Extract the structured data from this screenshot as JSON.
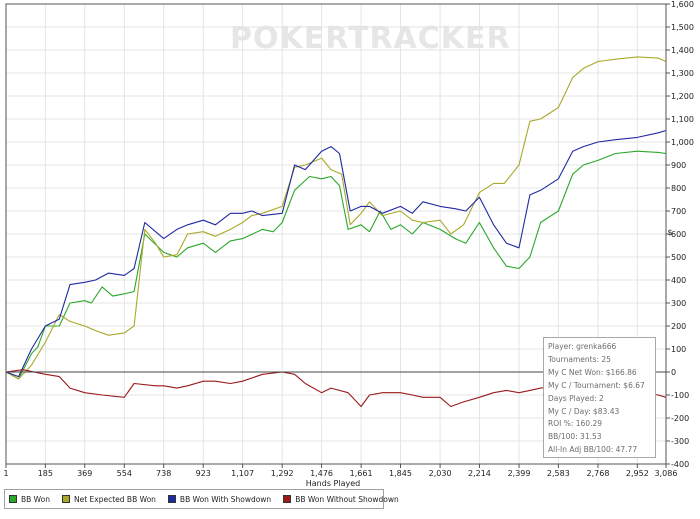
{
  "chart_data": {
    "type": "line",
    "title": "",
    "watermark": "POKERTRACKER",
    "xlabel": "Hands Played",
    "ylabel": "$",
    "xlim": [
      1,
      3086
    ],
    "ylim": [
      -400,
      1600
    ],
    "x_ticks": [
      "1",
      "185",
      "369",
      "554",
      "738",
      "923",
      "1,107",
      "1,292",
      "1,476",
      "1,661",
      "1,845",
      "2,030",
      "2,214",
      "2,399",
      "2,583",
      "2,768",
      "2,952",
      "3,086"
    ],
    "y_ticks": [
      "-400",
      "-300",
      "-200",
      "-100",
      "0",
      "100",
      "200",
      "300",
      "400",
      "500",
      "600",
      "700",
      "800",
      "900",
      "1,000",
      "1,100",
      "1,200",
      "1,300",
      "1,400",
      "1,500",
      "1,600"
    ],
    "grid": true,
    "legend_position": "bottom-left",
    "series": [
      {
        "name": "BB Won",
        "color": "#2aa82a",
        "points": [
          [
            1,
            0
          ],
          [
            60,
            -30
          ],
          [
            120,
            80
          ],
          [
            150,
            110
          ],
          [
            185,
            200
          ],
          [
            250,
            200
          ],
          [
            300,
            300
          ],
          [
            369,
            310
          ],
          [
            400,
            300
          ],
          [
            450,
            370
          ],
          [
            500,
            330
          ],
          [
            554,
            340
          ],
          [
            600,
            350
          ],
          [
            650,
            600
          ],
          [
            738,
            520
          ],
          [
            800,
            500
          ],
          [
            850,
            540
          ],
          [
            923,
            560
          ],
          [
            980,
            520
          ],
          [
            1050,
            570
          ],
          [
            1107,
            580
          ],
          [
            1200,
            620
          ],
          [
            1250,
            610
          ],
          [
            1292,
            650
          ],
          [
            1350,
            790
          ],
          [
            1420,
            850
          ],
          [
            1476,
            840
          ],
          [
            1520,
            850
          ],
          [
            1560,
            810
          ],
          [
            1600,
            620
          ],
          [
            1661,
            640
          ],
          [
            1700,
            610
          ],
          [
            1750,
            700
          ],
          [
            1800,
            620
          ],
          [
            1845,
            640
          ],
          [
            1900,
            600
          ],
          [
            1950,
            650
          ],
          [
            2030,
            620
          ],
          [
            2100,
            580
          ],
          [
            2150,
            560
          ],
          [
            2214,
            650
          ],
          [
            2280,
            540
          ],
          [
            2340,
            460
          ],
          [
            2399,
            450
          ],
          [
            2450,
            500
          ],
          [
            2500,
            650
          ],
          [
            2583,
            700
          ],
          [
            2650,
            860
          ],
          [
            2700,
            900
          ],
          [
            2768,
            920
          ],
          [
            2850,
            950
          ],
          [
            2952,
            960
          ],
          [
            3050,
            955
          ],
          [
            3086,
            950
          ]
        ]
      },
      {
        "name": "Net Expected BB Won",
        "color": "#a9a92a",
        "points": [
          [
            1,
            0
          ],
          [
            60,
            -30
          ],
          [
            120,
            30
          ],
          [
            185,
            130
          ],
          [
            250,
            250
          ],
          [
            300,
            220
          ],
          [
            369,
            200
          ],
          [
            420,
            180
          ],
          [
            480,
            160
          ],
          [
            554,
            170
          ],
          [
            600,
            200
          ],
          [
            650,
            620
          ],
          [
            700,
            560
          ],
          [
            738,
            500
          ],
          [
            800,
            510
          ],
          [
            850,
            600
          ],
          [
            923,
            610
          ],
          [
            980,
            590
          ],
          [
            1050,
            620
          ],
          [
            1107,
            650
          ],
          [
            1150,
            680
          ],
          [
            1200,
            690
          ],
          [
            1292,
            720
          ],
          [
            1350,
            890
          ],
          [
            1400,
            900
          ],
          [
            1476,
            930
          ],
          [
            1520,
            880
          ],
          [
            1570,
            860
          ],
          [
            1610,
            640
          ],
          [
            1661,
            690
          ],
          [
            1700,
            740
          ],
          [
            1760,
            680
          ],
          [
            1845,
            700
          ],
          [
            1900,
            660
          ],
          [
            1950,
            650
          ],
          [
            2030,
            660
          ],
          [
            2080,
            600
          ],
          [
            2140,
            640
          ],
          [
            2214,
            780
          ],
          [
            2280,
            820
          ],
          [
            2330,
            820
          ],
          [
            2399,
            900
          ],
          [
            2450,
            1090
          ],
          [
            2500,
            1100
          ],
          [
            2583,
            1150
          ],
          [
            2650,
            1280
          ],
          [
            2700,
            1320
          ],
          [
            2768,
            1350
          ],
          [
            2850,
            1360
          ],
          [
            2952,
            1370
          ],
          [
            3050,
            1365
          ],
          [
            3086,
            1350
          ]
        ]
      },
      {
        "name": "BB Won With Showdown",
        "color": "#1f2aa0",
        "points": [
          [
            1,
            0
          ],
          [
            60,
            -20
          ],
          [
            120,
            100
          ],
          [
            185,
            200
          ],
          [
            250,
            230
          ],
          [
            300,
            380
          ],
          [
            369,
            390
          ],
          [
            420,
            400
          ],
          [
            480,
            430
          ],
          [
            554,
            420
          ],
          [
            600,
            450
          ],
          [
            650,
            650
          ],
          [
            738,
            580
          ],
          [
            800,
            620
          ],
          [
            850,
            640
          ],
          [
            923,
            660
          ],
          [
            980,
            640
          ],
          [
            1050,
            690
          ],
          [
            1107,
            690
          ],
          [
            1150,
            700
          ],
          [
            1200,
            680
          ],
          [
            1292,
            690
          ],
          [
            1350,
            900
          ],
          [
            1400,
            880
          ],
          [
            1476,
            960
          ],
          [
            1520,
            980
          ],
          [
            1560,
            950
          ],
          [
            1610,
            700
          ],
          [
            1661,
            720
          ],
          [
            1700,
            720
          ],
          [
            1760,
            690
          ],
          [
            1845,
            720
          ],
          [
            1900,
            690
          ],
          [
            1950,
            740
          ],
          [
            2030,
            720
          ],
          [
            2100,
            710
          ],
          [
            2150,
            700
          ],
          [
            2214,
            760
          ],
          [
            2280,
            640
          ],
          [
            2340,
            560
          ],
          [
            2399,
            540
          ],
          [
            2450,
            770
          ],
          [
            2500,
            790
          ],
          [
            2583,
            840
          ],
          [
            2650,
            960
          ],
          [
            2700,
            980
          ],
          [
            2768,
            1000
          ],
          [
            2850,
            1010
          ],
          [
            2952,
            1020
          ],
          [
            3050,
            1040
          ],
          [
            3086,
            1050
          ]
        ]
      },
      {
        "name": "BB Won Without Showdown",
        "color": "#9a1a1a",
        "points": [
          [
            1,
            0
          ],
          [
            80,
            10
          ],
          [
            185,
            -10
          ],
          [
            250,
            -20
          ],
          [
            300,
            -70
          ],
          [
            369,
            -90
          ],
          [
            450,
            -100
          ],
          [
            554,
            -110
          ],
          [
            600,
            -50
          ],
          [
            700,
            -60
          ],
          [
            738,
            -60
          ],
          [
            800,
            -70
          ],
          [
            850,
            -60
          ],
          [
            923,
            -40
          ],
          [
            980,
            -40
          ],
          [
            1050,
            -50
          ],
          [
            1107,
            -40
          ],
          [
            1200,
            -10
          ],
          [
            1292,
            0
          ],
          [
            1350,
            -10
          ],
          [
            1400,
            -50
          ],
          [
            1476,
            -90
          ],
          [
            1520,
            -70
          ],
          [
            1600,
            -90
          ],
          [
            1661,
            -150
          ],
          [
            1700,
            -100
          ],
          [
            1760,
            -90
          ],
          [
            1845,
            -90
          ],
          [
            1900,
            -100
          ],
          [
            1950,
            -110
          ],
          [
            2030,
            -110
          ],
          [
            2080,
            -150
          ],
          [
            2140,
            -130
          ],
          [
            2214,
            -110
          ],
          [
            2280,
            -90
          ],
          [
            2340,
            -80
          ],
          [
            2399,
            -90
          ],
          [
            2450,
            -80
          ],
          [
            2500,
            -70
          ],
          [
            2583,
            -60
          ],
          [
            2650,
            -80
          ],
          [
            2768,
            -80
          ],
          [
            2850,
            -80
          ],
          [
            2952,
            -90
          ],
          [
            3050,
            -100
          ],
          [
            3086,
            -110
          ]
        ]
      }
    ]
  },
  "stats": [
    "Player: grenka666",
    "Tournaments: 25",
    "My C Net Won: $166.86",
    "My C / Tournament: $6.67",
    "Days Played: 2",
    "My C / Day: $83.43",
    "ROI %: 160.29",
    "BB/100: 31.53",
    "All-In Adj BB/100: 47.77"
  ],
  "legend": [
    {
      "label": "BB Won",
      "color": "#2aa82a"
    },
    {
      "label": "Net Expected BB Won",
      "color": "#a9a92a"
    },
    {
      "label": "BB Won With Showdown",
      "color": "#1f2aa0"
    },
    {
      "label": "BB Won Without Showdown",
      "color": "#9a1a1a"
    }
  ]
}
